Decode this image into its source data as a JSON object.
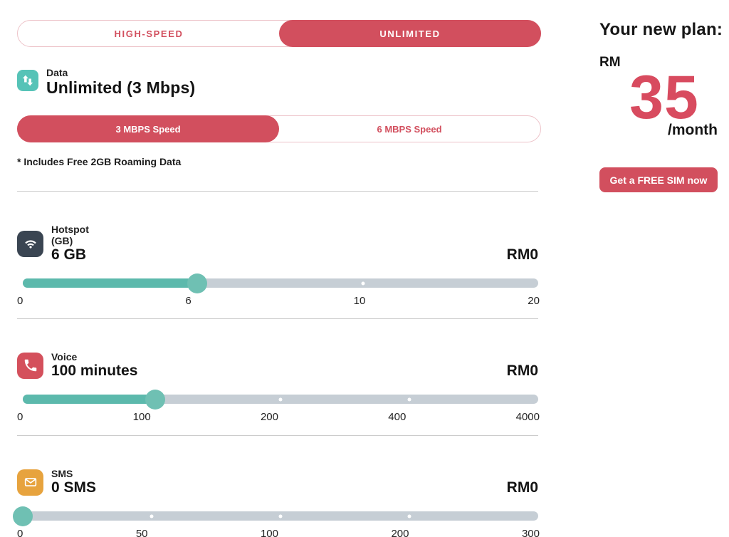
{
  "plan_toggle": {
    "options": [
      {
        "label": "HIGH-SPEED",
        "selected": false
      },
      {
        "label": "UNLIMITED",
        "selected": true
      }
    ]
  },
  "data_feature": {
    "label": "Data",
    "value": "Unlimited (3 Mbps)",
    "icon": "data-arrows-icon",
    "icon_color": "#56c3b7"
  },
  "speed_toggle": {
    "options": [
      {
        "label": "3 MBPS Speed",
        "selected": true
      },
      {
        "label": "6 MBPS Speed",
        "selected": false
      }
    ]
  },
  "roaming_note": "* Includes Free 2GB Roaming Data",
  "sliders": [
    {
      "id": "hotspot",
      "label": "Hotspot",
      "sublabel": "(GB)",
      "value": "6 GB",
      "price": "RM0",
      "icon": "wifi-icon",
      "icon_color": "#3a4552",
      "ticks": [
        "0",
        "6",
        "10",
        "20"
      ],
      "fill_pct": 33.9,
      "dot_pcts": [
        66
      ]
    },
    {
      "id": "voice",
      "label": "Voice",
      "sublabel": "",
      "value": "100 minutes",
      "price": "RM0",
      "icon": "phone-icon",
      "icon_color": "#d4505c",
      "ticks": [
        "0",
        "100",
        "200",
        "400",
        "4000"
      ],
      "fill_pct": 25.7,
      "dot_pcts": [
        50,
        75
      ]
    },
    {
      "id": "sms",
      "label": "SMS",
      "sublabel": "",
      "value": "0 SMS",
      "price": "RM0",
      "icon": "envelope-icon",
      "icon_color": "#e7a33e",
      "ticks": [
        "0",
        "50",
        "100",
        "200",
        "300"
      ],
      "fill_pct": 0,
      "dot_pcts": [
        25,
        50,
        75
      ]
    }
  ],
  "summary": {
    "title": "Your new plan:",
    "currency": "RM",
    "price": "35",
    "period": "/month",
    "cta_label": "Get a FREE SIM now"
  },
  "colors": {
    "accent_red": "#d24f5e",
    "teal": "#56c3b7",
    "slider_fill": "#5cb9ac",
    "slider_track": "#c6ced5",
    "dark_navy": "#3a4552",
    "orange": "#e7a33e",
    "price_red": "#d84b5f"
  }
}
